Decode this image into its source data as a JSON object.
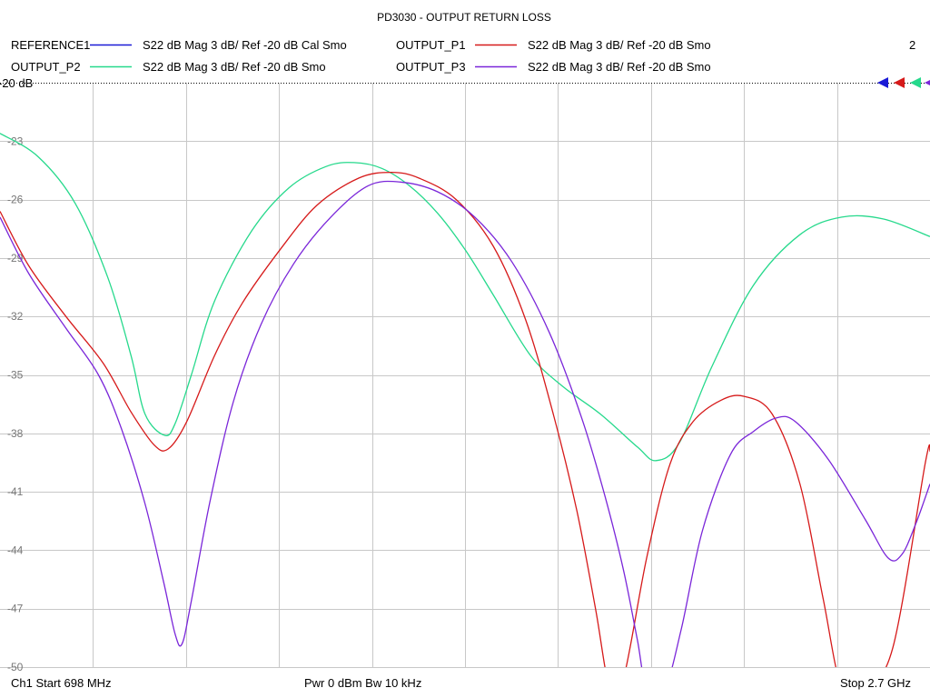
{
  "chart_data": {
    "type": "line",
    "title": "PD3030 - OUTPUT RETURN LOSS",
    "marker_number": "2",
    "ref_label": "-20 dB",
    "ylim": [
      -50,
      -20
    ],
    "xlim": [
      698,
      2700
    ],
    "yticks": [
      -23,
      -26,
      -29,
      -32,
      -35,
      -38,
      -41,
      -44,
      -47,
      -50
    ],
    "ytick_labels": [
      "-23",
      "-26",
      "-29",
      "-32",
      "-35",
      "-38",
      "-41",
      "-44",
      "-47",
      "-50"
    ],
    "x_unit": "MHz",
    "grid": true,
    "legend": [
      {
        "trace": "REFERENCE1",
        "description": "S22  dB Mag  3 dB/ Ref -20 dB  Cal Smo",
        "color": "#1a1ad6"
      },
      {
        "trace": "OUTPUT_P1",
        "description": "S22  dB Mag  3 dB/ Ref -20 dB  Smo",
        "color": "#d61a1a"
      },
      {
        "trace": "OUTPUT_P2",
        "description": "S22  dB Mag  3 dB/ Ref -20 dB  Smo",
        "color": "#26d98c"
      },
      {
        "trace": "OUTPUT_P3",
        "description": "S22  dB Mag  3 dB/ Ref -20 dB  Smo",
        "color": "#7a26d9"
      }
    ],
    "series": [
      {
        "name": "OUTPUT_P2",
        "color": "#26d98c",
        "points": [
          [
            698,
            -22.6
          ],
          [
            780,
            -23.8
          ],
          [
            860,
            -26.2
          ],
          [
            930,
            -30.0
          ],
          [
            980,
            -34.0
          ],
          [
            1010,
            -37.0
          ],
          [
            1052,
            -38.1
          ],
          [
            1075,
            -37.5
          ],
          [
            1110,
            -35.0
          ],
          [
            1160,
            -31.2
          ],
          [
            1240,
            -27.6
          ],
          [
            1320,
            -25.4
          ],
          [
            1400,
            -24.3
          ],
          [
            1460,
            -24.1
          ],
          [
            1520,
            -24.4
          ],
          [
            1580,
            -25.3
          ],
          [
            1640,
            -26.7
          ],
          [
            1700,
            -28.6
          ],
          [
            1760,
            -30.9
          ],
          [
            1840,
            -34.0
          ],
          [
            1910,
            -35.6
          ],
          [
            1990,
            -37.0
          ],
          [
            2070,
            -38.7
          ],
          [
            2110,
            -39.4
          ],
          [
            2160,
            -38.5
          ],
          [
            2230,
            -34.6
          ],
          [
            2320,
            -30.4
          ],
          [
            2420,
            -27.8
          ],
          [
            2510,
            -26.9
          ],
          [
            2600,
            -27.0
          ],
          [
            2700,
            -27.9
          ]
        ]
      },
      {
        "name": "OUTPUT_P1",
        "color": "#d61a1a",
        "points": [
          [
            698,
            -26.6
          ],
          [
            760,
            -29.4
          ],
          [
            840,
            -32.0
          ],
          [
            920,
            -34.4
          ],
          [
            980,
            -36.9
          ],
          [
            1030,
            -38.6
          ],
          [
            1060,
            -38.8
          ],
          [
            1100,
            -37.4
          ],
          [
            1160,
            -34.0
          ],
          [
            1220,
            -31.3
          ],
          [
            1300,
            -28.6
          ],
          [
            1380,
            -26.3
          ],
          [
            1470,
            -24.9
          ],
          [
            1540,
            -24.6
          ],
          [
            1600,
            -24.9
          ],
          [
            1680,
            -26.0
          ],
          [
            1760,
            -28.4
          ],
          [
            1830,
            -32.2
          ],
          [
            1890,
            -37.1
          ],
          [
            1940,
            -42.0
          ],
          [
            1980,
            -47.0
          ],
          [
            2010,
            -51.0
          ],
          [
            2040,
            -50.6
          ],
          [
            2090,
            -44.4
          ],
          [
            2140,
            -39.6
          ],
          [
            2190,
            -37.4
          ],
          [
            2250,
            -36.3
          ],
          [
            2300,
            -36.1
          ],
          [
            2360,
            -37.0
          ],
          [
            2420,
            -40.6
          ],
          [
            2470,
            -46.5
          ],
          [
            2510,
            -51.0
          ],
          [
            2560,
            -51.0
          ],
          [
            2620,
            -49.0
          ],
          [
            2690,
            -39.5
          ],
          [
            2700,
            -38.9
          ]
        ]
      },
      {
        "name": "OUTPUT_P3",
        "color": "#7a26d9",
        "points": [
          [
            698,
            -26.9
          ],
          [
            760,
            -29.8
          ],
          [
            840,
            -32.6
          ],
          [
            910,
            -35.0
          ],
          [
            960,
            -37.8
          ],
          [
            1010,
            -41.6
          ],
          [
            1050,
            -45.6
          ],
          [
            1075,
            -48.3
          ],
          [
            1090,
            -48.8
          ],
          [
            1110,
            -46.6
          ],
          [
            1150,
            -41.5
          ],
          [
            1200,
            -36.4
          ],
          [
            1260,
            -32.4
          ],
          [
            1330,
            -29.3
          ],
          [
            1410,
            -26.9
          ],
          [
            1490,
            -25.3
          ],
          [
            1560,
            -25.1
          ],
          [
            1640,
            -25.6
          ],
          [
            1720,
            -26.9
          ],
          [
            1800,
            -29.2
          ],
          [
            1880,
            -32.8
          ],
          [
            1950,
            -37.2
          ],
          [
            2000,
            -41.2
          ],
          [
            2040,
            -45.0
          ],
          [
            2070,
            -48.6
          ],
          [
            2090,
            -51.0
          ],
          [
            2130,
            -51.0
          ],
          [
            2165,
            -48.0
          ],
          [
            2210,
            -43.0
          ],
          [
            2270,
            -39.1
          ],
          [
            2320,
            -37.9
          ],
          [
            2370,
            -37.2
          ],
          [
            2410,
            -37.4
          ],
          [
            2480,
            -39.3
          ],
          [
            2560,
            -42.4
          ],
          [
            2610,
            -44.4
          ],
          [
            2640,
            -44.2
          ],
          [
            2670,
            -42.6
          ],
          [
            2700,
            -40.6
          ]
        ]
      }
    ]
  },
  "footer": {
    "channel": "Ch1  Start  698 MHz",
    "power": "Pwr  0 dBm  Bw  10 kHz",
    "stop": "Stop  2.7 GHz"
  }
}
